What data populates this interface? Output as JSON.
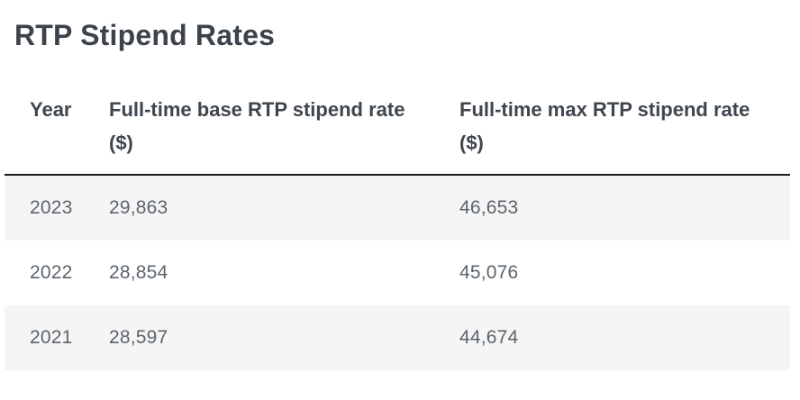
{
  "page": {
    "title": "RTP Stipend Rates"
  },
  "table": {
    "columns": [
      {
        "label": "Year"
      },
      {
        "label": "Full-time base RTP stipend rate ($)"
      },
      {
        "label": "Full-time max RTP stipend rate ($)"
      }
    ],
    "rows": [
      {
        "year": "2023",
        "base_rate": "29,863",
        "max_rate": "46,653"
      },
      {
        "year": "2022",
        "base_rate": "28,854",
        "max_rate": "45,076"
      },
      {
        "year": "2021",
        "base_rate": "28,597",
        "max_rate": "44,674"
      }
    ]
  },
  "colors": {
    "heading_text": "#3c434b",
    "header_text": "#3f464e",
    "body_text": "#5c646c",
    "row_alt_background": "#f5f5f5",
    "header_border": "#1c1c1c",
    "page_background": "#ffffff"
  }
}
